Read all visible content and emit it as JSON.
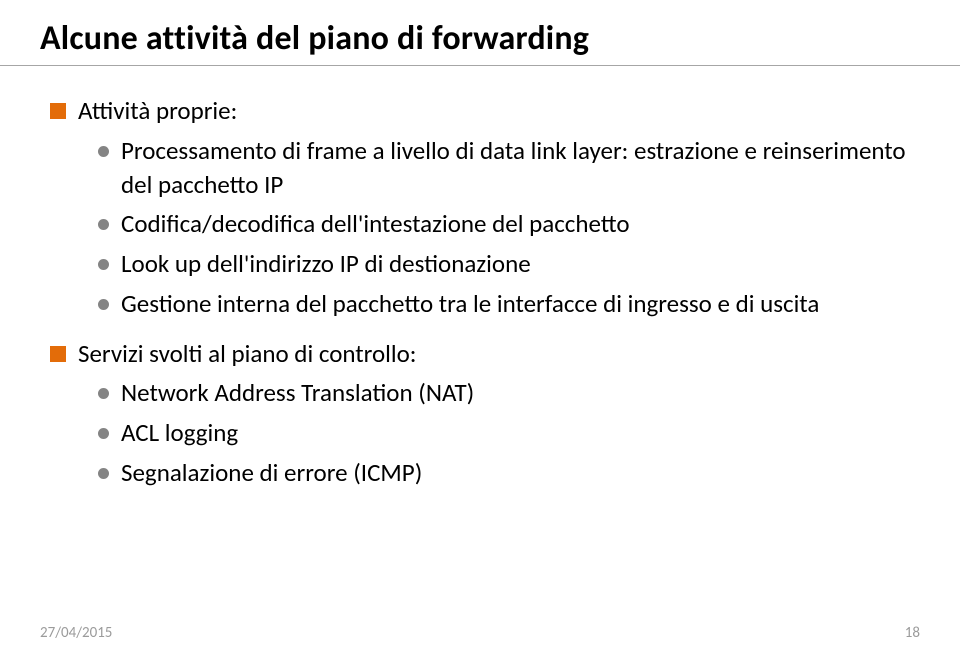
{
  "title": "Alcune attività del piano di forwarding",
  "sections": [
    {
      "label": "Attività proprie:",
      "items": [
        "Processamento di frame a livello di data link layer: estrazione e reinserimento del pacchetto IP",
        "Codifica/decodifica dell'intestazione del pacchetto",
        "Look up dell'indirizzo IP di destionazione",
        "Gestione interna del pacchetto tra le interfacce di ingresso e di uscita"
      ]
    },
    {
      "label": "Servizi svolti al piano di controllo:",
      "items": [
        "Network Address Translation (NAT)",
        "ACL logging",
        "Segnalazione di errore (ICMP)"
      ]
    }
  ],
  "footer": {
    "date": "27/04/2015",
    "page": "18"
  },
  "colors": {
    "square_bullet": "#e36c09",
    "round_bullet": "#848484",
    "rule": "#a6a6a6",
    "footer_text": "#9b9b9b",
    "text": "#000000",
    "background": "#ffffff"
  },
  "typography": {
    "title_pt": 34,
    "body_pt": 25,
    "footer_pt": 15
  }
}
